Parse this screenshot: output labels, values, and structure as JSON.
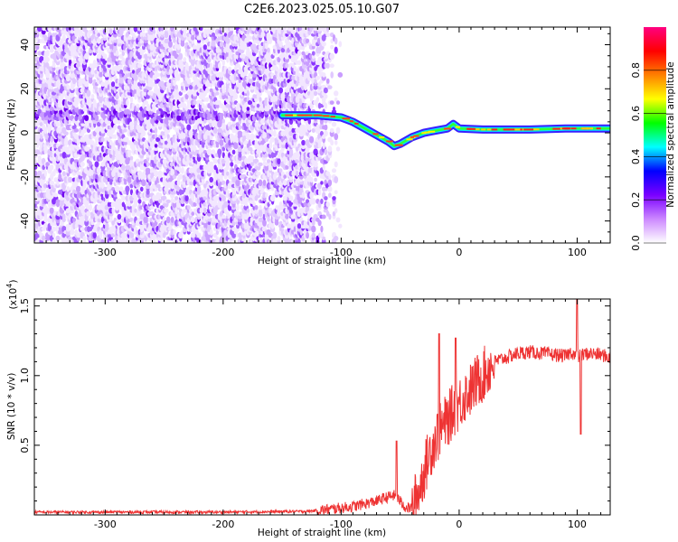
{
  "title": "C2E6.2023.025.05.10.G07",
  "chart_data": [
    {
      "type": "heatmap",
      "xlabel": "Height of straight line (km)",
      "ylabel": "Frequency (Hz)",
      "xlim": [
        -360,
        128
      ],
      "ylim": [
        -50,
        48
      ],
      "xticks": [
        -300,
        -200,
        -100,
        0,
        100
      ],
      "yticks": [
        -40,
        -20,
        0,
        20,
        40
      ],
      "colorbar": {
        "label": "Normalized spectral amplitude",
        "range": [
          0,
          1
        ],
        "ticks": [
          "0.0",
          "0.2",
          "0.4",
          "0.6",
          "0.8"
        ],
        "colors": [
          "#ffffff",
          "#cc88ff",
          "#7a00ff",
          "#0000ff",
          "#00ffff",
          "#00ff00",
          "#ffff00",
          "#ff8000",
          "#ff0000",
          "#ff0080"
        ]
      },
      "ridge": {
        "x": [
          -150,
          -120,
          -100,
          -90,
          -80,
          -70,
          -60,
          -55,
          -50,
          -40,
          -30,
          -20,
          -10,
          -5,
          0,
          20,
          60,
          90,
          128
        ],
        "y": [
          8,
          8,
          7,
          5,
          2,
          -1,
          -4,
          -6,
          -5,
          -2,
          0,
          1,
          2,
          4,
          2,
          1.5,
          1.5,
          2,
          2
        ]
      },
      "noise_region_x": [
        -360,
        -100
      ]
    },
    {
      "type": "line",
      "xlabel": "Height of straight line (km)",
      "ylabel": "SNR (10 * v/v)",
      "multiplier": "(x10",
      "multiplier_exp": "4",
      "xlim": [
        -360,
        128
      ],
      "ylim": [
        0,
        1.55
      ],
      "xticks": [
        -300,
        -200,
        -100,
        0,
        100
      ],
      "yticks": [
        0.5,
        1.0,
        1.5
      ],
      "ytick_labels": [
        "0.5",
        "1.0",
        "1.5"
      ],
      "color": "#ee3333",
      "series": [
        {
          "x": [
            -360,
            -300,
            -200,
            -130,
            -110,
            -100,
            -90,
            -80,
            -70,
            -60,
            -55,
            -50,
            -45,
            -40,
            -35,
            -30,
            -25,
            -20,
            -15,
            -10,
            -5,
            0,
            5,
            10,
            15,
            20,
            25,
            30,
            40,
            50,
            60,
            70,
            80,
            90,
            95,
            100,
            105,
            110,
            120,
            128
          ],
          "y": [
            0.02,
            0.02,
            0.02,
            0.025,
            0.04,
            0.05,
            0.06,
            0.08,
            0.1,
            0.13,
            0.14,
            0.1,
            0.05,
            0.05,
            0.15,
            0.3,
            0.45,
            0.55,
            0.62,
            0.68,
            0.75,
            0.8,
            0.86,
            0.9,
            0.96,
            1.0,
            1.05,
            1.1,
            1.13,
            1.16,
            1.17,
            1.16,
            1.15,
            1.14,
            1.17,
            1.13,
            1.15,
            1.16,
            1.15,
            1.13
          ]
        }
      ],
      "peaks": [
        {
          "x": -53,
          "y": 0.53
        },
        {
          "x": -17,
          "y": 1.3
        },
        {
          "x": -3,
          "y": 1.27
        },
        {
          "x": 100,
          "y": 1.55
        },
        {
          "x": 103,
          "y": 0.58
        }
      ]
    }
  ]
}
